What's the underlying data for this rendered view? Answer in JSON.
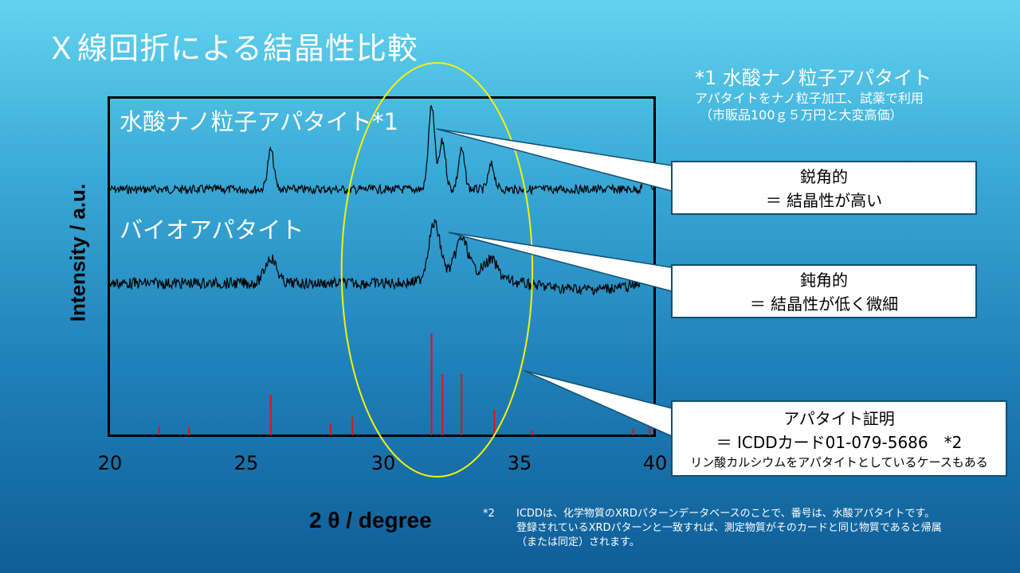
{
  "title": "Ｘ線回折による結晶性比較",
  "note1": {
    "title": "*1 水酸ナノ粒子アパタイト",
    "line1": "アパタイトをナノ粒子加工、試薬で利用",
    "line2": "（市販品100ｇ５万円と大変高価）"
  },
  "chart_data": {
    "type": "line",
    "xlabel": "2 θ / degree",
    "ylabel": "Intensity / a.u.",
    "xlim": [
      20,
      40
    ],
    "xticks": [
      "20",
      "25",
      "30",
      "35",
      "40"
    ],
    "series": [
      {
        "name": "水酸ナノ粒子アパタイト*1",
        "peaks": [
          [
            25.9,
            0.45
          ],
          [
            31.8,
            0.95
          ],
          [
            32.2,
            0.55
          ],
          [
            32.9,
            0.45
          ],
          [
            34.0,
            0.28
          ],
          [
            39.7,
            0.15
          ]
        ]
      },
      {
        "name": "バイオアパタイト",
        "peaks": [
          [
            25.9,
            0.35
          ],
          [
            31.9,
            0.75
          ],
          [
            32.9,
            0.45
          ],
          [
            34.0,
            0.2
          ],
          [
            39.7,
            0.1
          ]
        ]
      }
    ],
    "reference_sticks": {
      "name": "ICDDカード01-079-5686",
      "x": [
        21.8,
        22.9,
        25.9,
        28.1,
        28.9,
        31.8,
        32.2,
        32.9,
        34.1,
        35.5,
        39.2,
        39.8
      ],
      "values": [
        0.09,
        0.09,
        0.4,
        0.11,
        0.18,
        1.0,
        0.6,
        0.6,
        0.25,
        0.05,
        0.07,
        0.11
      ]
    },
    "highlight_ellipse_x": [
      28.5,
      35.5
    ]
  },
  "callouts": [
    {
      "line1": "鋭角的",
      "line2": "＝ 結晶性が高い"
    },
    {
      "line1": "鈍角的",
      "line2": "＝ 結晶性が低く微細"
    },
    {
      "line1": "アパタイト証明",
      "line2": "＝ ICDDカード01-079-5686　*2",
      "line3": "リン酸カルシウムをアパタイトとしているケースもある"
    }
  ],
  "footnote": {
    "mark": "*2",
    "line1": "ICDDは、化学物質のXRDパターンデータベースのことで、番号は、水酸アパタイトです。",
    "line2": "登録されているXRDパターンと一致すれば、測定物質がそのカードと同じ物質であると帰属",
    "line3": "（または同定）されます。"
  },
  "colors": {
    "ellipse": "#f2f20a",
    "sticks": "#e0140e",
    "lines": "#000000"
  }
}
